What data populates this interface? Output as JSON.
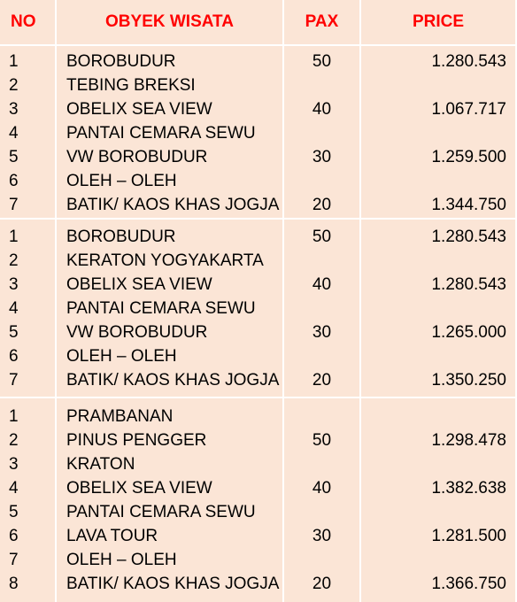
{
  "header": {
    "no": "NO",
    "obyek": "OBYEK WISATA",
    "pax": "PAX",
    "price": "PRICE"
  },
  "groups": [
    {
      "rows": [
        {
          "no": "1",
          "obyek": "BOROBUDUR"
        },
        {
          "no": "2",
          "obyek": "TEBING BREKSI"
        },
        {
          "no": "3",
          "obyek": "OBELIX SEA VIEW"
        },
        {
          "no": "4",
          "obyek": "PANTAI CEMARA SEWU"
        },
        {
          "no": "5",
          "obyek": "VW BOROBUDUR"
        },
        {
          "no": "6",
          "obyek": "OLEH – OLEH"
        },
        {
          "no": "7",
          "obyek": "BATIK/ KAOS KHAS JOGJA"
        }
      ],
      "prices": [
        {
          "pax": "50",
          "price": "1.280.543"
        },
        {
          "pax": "40",
          "price": "1.067.717"
        },
        {
          "pax": "30",
          "price": "1.259.500"
        },
        {
          "pax": "20",
          "price": "1.344.750"
        }
      ]
    },
    {
      "rows": [
        {
          "no": "1",
          "obyek": "BOROBUDUR"
        },
        {
          "no": "2",
          "obyek": "KERATON YOGYAKARTA"
        },
        {
          "no": "3",
          "obyek": "OBELIX SEA VIEW"
        },
        {
          "no": "4",
          "obyek": "PANTAI CEMARA SEWU"
        },
        {
          "no": "5",
          "obyek": "VW BOROBUDUR"
        },
        {
          "no": "6",
          "obyek": "OLEH – OLEH"
        },
        {
          "no": "7",
          "obyek": "BATIK/ KAOS KHAS JOGJA"
        }
      ],
      "prices": [
        {
          "pax": "50",
          "price": "1.280.543"
        },
        {
          "pax": "40",
          "price": "1.280.543"
        },
        {
          "pax": "30",
          "price": "1.265.000"
        },
        {
          "pax": "20",
          "price": "1.350.250"
        }
      ]
    },
    {
      "rows": [
        {
          "no": "1",
          "obyek": "PRAMBANAN"
        },
        {
          "no": "2",
          "obyek": "PINUS PENGGER"
        },
        {
          "no": "3",
          "obyek": "KRATON"
        },
        {
          "no": "4",
          "obyek": "OBELIX SEA VIEW"
        },
        {
          "no": "5",
          "obyek": "PANTAI CEMARA SEWU"
        },
        {
          "no": "6",
          "obyek": "LAVA TOUR"
        },
        {
          "no": "7",
          "obyek": "OLEH – OLEH"
        },
        {
          "no": "8",
          "obyek": "BATIK/ KAOS KHAS JOGJA"
        }
      ],
      "prices": [
        {
          "pax": "50",
          "price": "1.298.478"
        },
        {
          "pax": "40",
          "price": "1.382.638"
        },
        {
          "pax": "30",
          "price": "1.281.500"
        },
        {
          "pax": "20",
          "price": "1.366.750"
        }
      ]
    }
  ]
}
